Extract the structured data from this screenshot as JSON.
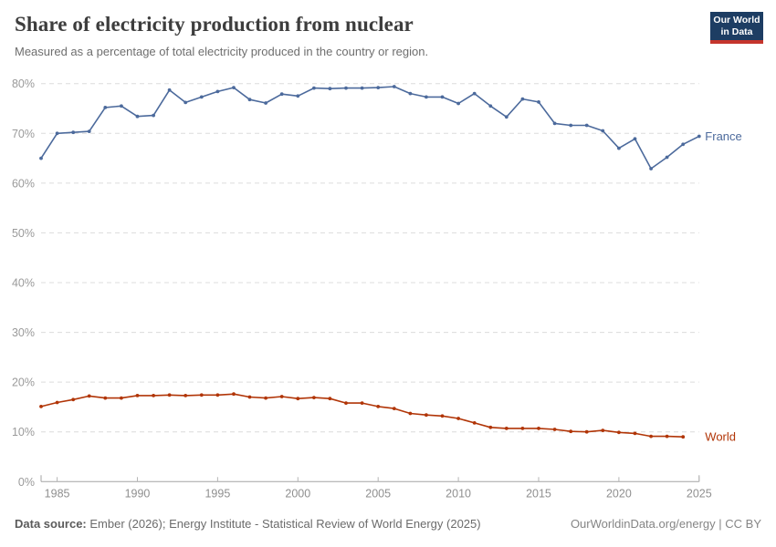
{
  "header": {
    "title": "Share of electricity production from nuclear",
    "subtitle": "Measured as a percentage of total electricity produced in the country or region."
  },
  "logo": {
    "line1": "Our World",
    "line2": "in Data",
    "bg_color": "#1d3d63",
    "bar_color": "#c5352d"
  },
  "chart_data": {
    "type": "line",
    "title": "Share of electricity production from nuclear",
    "xlabel": "",
    "ylabel": "",
    "ylim": [
      0,
      80
    ],
    "yticks": [
      0,
      10,
      20,
      30,
      40,
      50,
      60,
      70,
      80
    ],
    "ytick_suffix": "%",
    "xticks": [
      1985,
      1990,
      1995,
      2000,
      2005,
      2010,
      2015,
      2020,
      2025
    ],
    "grid": "horizontal-dashed",
    "legend_position": "end-of-line-labels",
    "series": [
      {
        "name": "France",
        "color": "#4c6a9c",
        "year_start": 1984,
        "year_end": 2025,
        "values": [
          65.0,
          70.0,
          70.2,
          70.4,
          75.2,
          75.5,
          73.4,
          73.6,
          78.7,
          76.2,
          77.3,
          78.4,
          79.2,
          76.8,
          76.1,
          77.9,
          77.5,
          79.1,
          79.0,
          79.1,
          79.1,
          79.2,
          79.4,
          78.0,
          77.3,
          77.3,
          76.0,
          78.0,
          75.5,
          73.3,
          76.9,
          76.3,
          72.0,
          71.6,
          71.6,
          70.5,
          67.0,
          68.9,
          62.9,
          65.2,
          67.8,
          69.4
        ]
      },
      {
        "name": "World",
        "color": "#b13507",
        "year_start": 1984,
        "year_end": 2024,
        "values": [
          15.1,
          15.9,
          16.5,
          17.2,
          16.8,
          16.8,
          17.3,
          17.3,
          17.4,
          17.3,
          17.4,
          17.4,
          17.6,
          17.0,
          16.8,
          17.1,
          16.7,
          16.9,
          16.7,
          15.8,
          15.8,
          15.1,
          14.7,
          13.7,
          13.4,
          13.2,
          12.7,
          11.8,
          10.9,
          10.7,
          10.7,
          10.7,
          10.5,
          10.1,
          10.0,
          10.3,
          9.9,
          9.7,
          9.1,
          9.1,
          9.0
        ]
      }
    ]
  },
  "footer": {
    "source_label": "Data source:",
    "source_text": "Ember (2026); Energy Institute - Statistical Review of World Energy (2025)",
    "credit": "OurWorldinData.org/energy | CC BY"
  }
}
